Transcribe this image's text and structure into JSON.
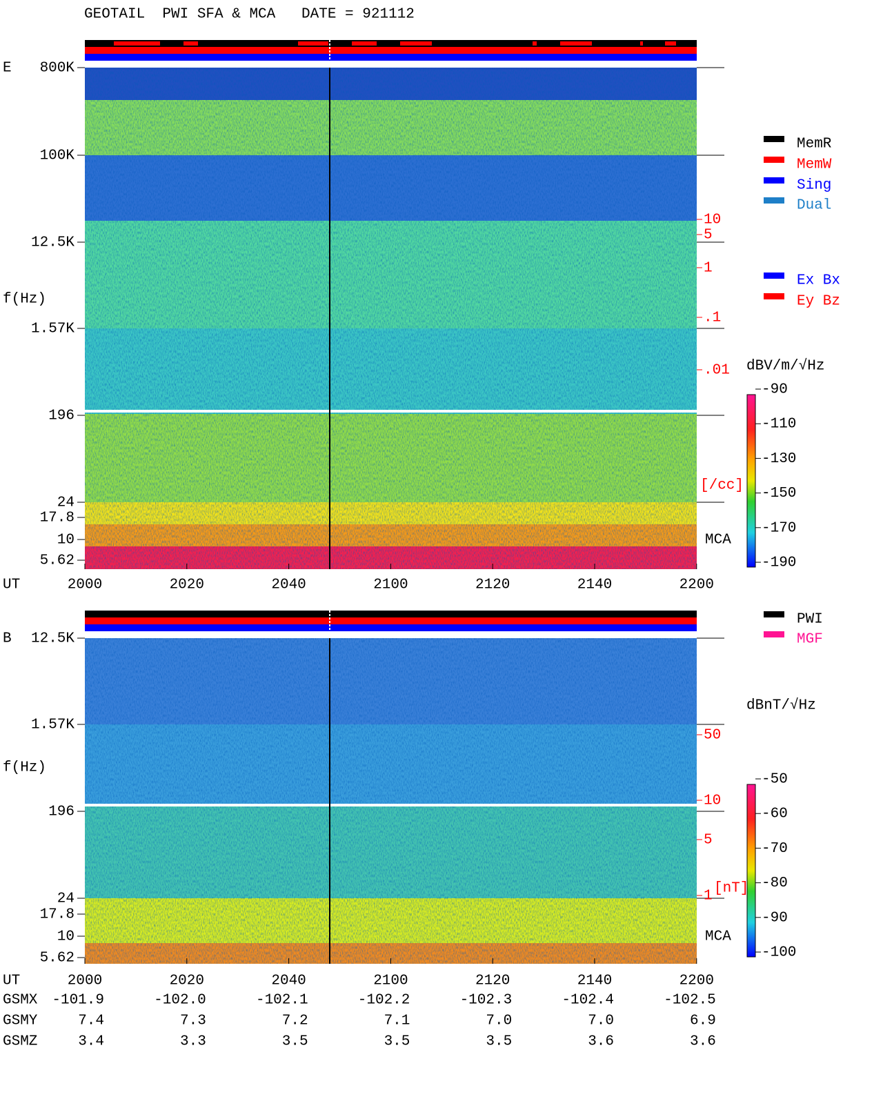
{
  "header": {
    "title": "GEOTAIL  PWI SFA & MCA   DATE = 921112"
  },
  "panels": [
    {
      "label": "E",
      "freq_label": "f(Hz)",
      "freq_ticks": [
        "800K",
        "100K",
        "12.5K",
        "1.57K",
        "196",
        "24",
        "17.8",
        "10",
        "5.62"
      ],
      "time_label": "UT",
      "time_ticks": [
        "2000",
        "2020",
        "2040",
        "2100",
        "2120",
        "2140",
        "2200"
      ],
      "density_ticks": [
        "10",
        "5",
        "1",
        ".1",
        ".01"
      ],
      "density_unit": "[/cc]",
      "mca_label": "MCA",
      "colorbar": {
        "unit": "dBV/m/√Hz",
        "ticks": [
          -90,
          -110,
          -130,
          -150,
          -170,
          -190
        ]
      }
    },
    {
      "label": "B",
      "freq_label": "f(Hz)",
      "freq_ticks": [
        "12.5K",
        "1.57K",
        "196",
        "24",
        "17.8",
        "10",
        "5.62"
      ],
      "time_label": "UT",
      "time_ticks": [
        "2000",
        "2020",
        "2040",
        "2100",
        "2120",
        "2140",
        "2200"
      ],
      "density_ticks": [
        "50",
        "10",
        "5",
        "1"
      ],
      "density_unit": "[nT]",
      "mca_label": "MCA",
      "colorbar": {
        "unit": "dBnT/√Hz",
        "ticks": [
          -50,
          -60,
          -70,
          -80,
          -90,
          -100
        ]
      }
    }
  ],
  "legend": {
    "mode": [
      {
        "label": "MemR",
        "color": "#000000"
      },
      {
        "label": "MemW",
        "color": "#ff0000"
      },
      {
        "label": "Sing",
        "color": "#0000ff"
      },
      {
        "label": "Dual",
        "color": "#1e7fc8"
      }
    ],
    "antenna": [
      {
        "label": "Ex Bx",
        "color": "#0000ff"
      },
      {
        "label": "Ey Bz",
        "color": "#ff0000"
      }
    ],
    "instrument": [
      {
        "label": "PWI",
        "color": "#000000"
      },
      {
        "label": "MGF",
        "color": "#ff1493"
      }
    ]
  },
  "ephemeris": {
    "rows": [
      {
        "label": "GSMX",
        "values": [
          "-101.9",
          "-102.0",
          "-102.1",
          "-102.2",
          "-102.3",
          "-102.4",
          "-102.5"
        ]
      },
      {
        "label": "GSMY",
        "values": [
          "7.4",
          "7.3",
          "7.2",
          "7.1",
          "7.0",
          "7.0",
          "6.9"
        ]
      },
      {
        "label": "GSMZ",
        "values": [
          "3.4",
          "3.3",
          "3.5",
          "3.5",
          "3.5",
          "3.6",
          "3.6"
        ]
      }
    ]
  }
}
